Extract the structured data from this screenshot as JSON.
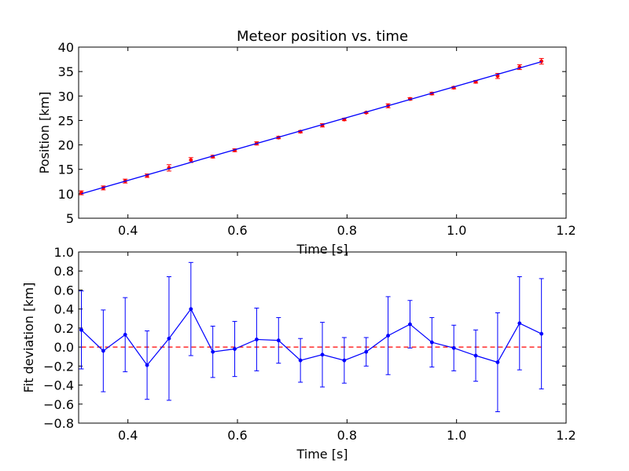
{
  "chart_data": [
    {
      "type": "line",
      "title": "Meteor position vs. time",
      "xlabel": "Time [s]",
      "ylabel": "Position [km]",
      "xlim": [
        0.31,
        1.2
      ],
      "ylim": [
        5,
        40
      ],
      "xticks": [
        0.4,
        0.6,
        0.8,
        1.0,
        1.2
      ],
      "xtick_labels": [
        "0.4",
        "0.6",
        "0.8",
        "1.0",
        "1.2"
      ],
      "yticks": [
        5,
        10,
        15,
        20,
        25,
        30,
        35,
        40
      ],
      "ytick_labels": [
        "5",
        "10",
        "15",
        "20",
        "25",
        "30",
        "35",
        "40"
      ],
      "grid": false,
      "series": [
        {
          "style": "points-with-errorbars",
          "color": "#ff0000",
          "x": [
            0.315,
            0.355,
            0.395,
            0.435,
            0.475,
            0.515,
            0.555,
            0.595,
            0.635,
            0.675,
            0.715,
            0.755,
            0.795,
            0.835,
            0.875,
            0.915,
            0.955,
            0.995,
            1.035,
            1.075,
            1.115,
            1.155
          ],
          "y": [
            10.2,
            11.2,
            12.6,
            13.7,
            15.3,
            16.9,
            17.6,
            18.9,
            20.3,
            21.5,
            22.7,
            24.0,
            25.2,
            26.6,
            28.0,
            29.4,
            30.5,
            31.7,
            32.9,
            34.1,
            35.9,
            37.1
          ],
          "err": [
            0.4,
            0.4,
            0.4,
            0.35,
            0.65,
            0.5,
            0.27,
            0.29,
            0.33,
            0.24,
            0.23,
            0.34,
            0.24,
            0.15,
            0.41,
            0.25,
            0.26,
            0.24,
            0.27,
            0.52,
            0.49,
            0.58
          ]
        },
        {
          "style": "fit-line",
          "color": "#0000ff",
          "x": [
            0.315,
            1.155
          ],
          "y": [
            10.0,
            37.0
          ]
        }
      ]
    },
    {
      "type": "line",
      "title": "",
      "xlabel": "Time [s]",
      "ylabel": "Fit deviation [km]",
      "xlim": [
        0.31,
        1.2
      ],
      "ylim": [
        -0.8,
        1.0
      ],
      "xticks": [
        0.4,
        0.6,
        0.8,
        1.0,
        1.2
      ],
      "xtick_labels": [
        "0.4",
        "0.6",
        "0.8",
        "1.0",
        "1.2"
      ],
      "yticks": [
        -0.8,
        -0.6,
        -0.4,
        -0.2,
        0.0,
        0.2,
        0.4,
        0.6,
        0.8,
        1.0
      ],
      "ytick_labels": [
        "−0.8",
        "−0.6",
        "−0.4",
        "−0.2",
        "0.0",
        "0.2",
        "0.4",
        "0.6",
        "0.8",
        "1.0"
      ],
      "grid": false,
      "reference_line": {
        "y": 0.0,
        "color": "#ff0000",
        "style": "dashed"
      },
      "series": [
        {
          "style": "line-points-with-errorbars",
          "color": "#0000ff",
          "x": [
            0.315,
            0.355,
            0.395,
            0.435,
            0.475,
            0.515,
            0.555,
            0.595,
            0.635,
            0.675,
            0.715,
            0.755,
            0.795,
            0.835,
            0.875,
            0.915,
            0.955,
            0.995,
            1.035,
            1.075,
            1.115,
            1.155
          ],
          "y": [
            0.18,
            -0.04,
            0.13,
            -0.19,
            0.09,
            0.4,
            -0.05,
            -0.02,
            0.08,
            0.07,
            -0.14,
            -0.08,
            -0.14,
            -0.05,
            0.12,
            0.24,
            0.05,
            -0.01,
            -0.09,
            -0.16,
            0.25,
            0.14
          ],
          "err": [
            0.41,
            0.43,
            0.39,
            0.36,
            0.65,
            0.49,
            0.27,
            0.29,
            0.33,
            0.24,
            0.23,
            0.34,
            0.24,
            0.15,
            0.41,
            0.25,
            0.26,
            0.24,
            0.27,
            0.52,
            0.49,
            0.58
          ]
        }
      ]
    }
  ]
}
